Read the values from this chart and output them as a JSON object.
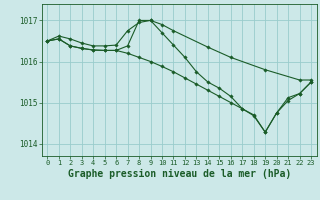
{
  "background_color": "#cce8e8",
  "grid_color": "#99cccc",
  "line_color": "#1a5c28",
  "xlabel": "Graphe pression niveau de la mer (hPa)",
  "xlabel_fontsize": 7,
  "yticks": [
    1014,
    1015,
    1016,
    1017
  ],
  "xticks": [
    0,
    1,
    2,
    3,
    4,
    5,
    6,
    7,
    8,
    9,
    10,
    11,
    12,
    13,
    14,
    15,
    16,
    17,
    18,
    19,
    20,
    21,
    22,
    23
  ],
  "xlim": [
    -0.5,
    23.5
  ],
  "ylim": [
    1013.7,
    1017.4
  ],
  "series": [
    {
      "x": [
        0,
        1,
        2,
        3,
        4,
        5,
        6,
        7,
        8,
        9,
        10,
        11,
        14,
        16,
        19,
        22,
        23
      ],
      "y": [
        1016.5,
        1016.62,
        1016.55,
        1016.45,
        1016.38,
        1016.38,
        1016.4,
        1016.75,
        1016.95,
        1017.0,
        1016.9,
        1016.75,
        1016.35,
        1016.1,
        1015.8,
        1015.55,
        1015.55
      ]
    },
    {
      "x": [
        0,
        1,
        2,
        3,
        4,
        5,
        6,
        7,
        8,
        9,
        10,
        11,
        12,
        13,
        14,
        15,
        16,
        17,
        18,
        19,
        20,
        21,
        22,
        23
      ],
      "y": [
        1016.5,
        1016.55,
        1016.38,
        1016.32,
        1016.28,
        1016.27,
        1016.27,
        1016.38,
        1017.0,
        1017.0,
        1016.7,
        1016.4,
        1016.1,
        1015.75,
        1015.5,
        1015.35,
        1015.15,
        1014.85,
        1014.7,
        1014.28,
        1014.75,
        1015.12,
        1015.22,
        1015.5
      ]
    },
    {
      "x": [
        0,
        1,
        2,
        3,
        4,
        5,
        6,
        7,
        8,
        9,
        10,
        11,
        12,
        13,
        14,
        15,
        16,
        17,
        18,
        19,
        20,
        21,
        22,
        23
      ],
      "y": [
        1016.5,
        1016.55,
        1016.38,
        1016.32,
        1016.28,
        1016.27,
        1016.27,
        1016.2,
        1016.1,
        1016.0,
        1015.88,
        1015.75,
        1015.6,
        1015.45,
        1015.3,
        1015.15,
        1015.0,
        1014.85,
        1014.68,
        1014.28,
        1014.75,
        1015.05,
        1015.22,
        1015.5
      ]
    }
  ]
}
